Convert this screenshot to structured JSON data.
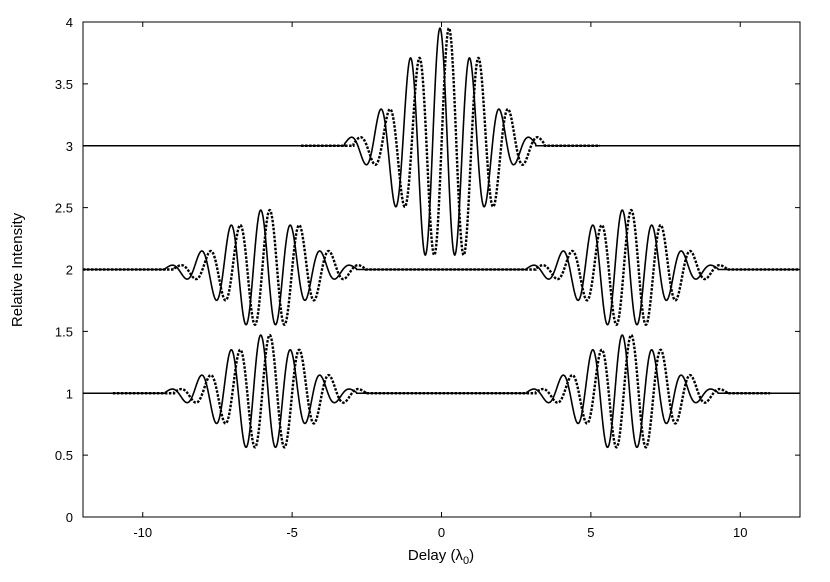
{
  "chart_data": {
    "type": "line",
    "title": "",
    "xlabel": "Delay (λ",
    "xlabel_sub": "0",
    "xlabel_close": ")",
    "ylabel": "Relative Intensity",
    "xlim": [
      -12,
      12
    ],
    "ylim": [
      0,
      4
    ],
    "xticks": [
      -10,
      -5,
      0,
      5,
      10
    ],
    "xtick_labels": [
      "-10",
      "-5",
      "0",
      "5",
      "10"
    ],
    "yticks": [
      0,
      0.5,
      1,
      1.5,
      2,
      2.5,
      3,
      3.5,
      4
    ],
    "ytick_labels": [
      "0",
      "0.5",
      "1",
      "1.5",
      "2",
      "2.5",
      "3",
      "3.5",
      "4"
    ],
    "grid": false,
    "legend": "none",
    "line_color": "#000000",
    "series": [
      {
        "style": "solid",
        "traces": [
          {
            "baseline": 3,
            "amplitude": 0.95,
            "packets": [
              {
                "center": -0.05,
                "amplitude": 1,
                "spread": 1.3,
                "support": 3.2
              }
            ],
            "period": 1.0,
            "phase": 0.0,
            "baseline_range": [
              -12,
              12
            ]
          },
          {
            "baseline": 2,
            "amplitude": 0.48,
            "packets": [
              {
                "center": -6.05,
                "amplitude": 1,
                "spread": 1.3,
                "support": 3.2
              },
              {
                "center": 6.05,
                "amplitude": 1,
                "spread": 1.3,
                "support": 3.2
              }
            ],
            "period": 1.0,
            "phase": 0.0,
            "baseline_range": [
              -12,
              12
            ]
          },
          {
            "baseline": 1,
            "amplitude": 0.47,
            "packets": [
              {
                "center": -6.05,
                "amplitude": 1,
                "spread": 1.3,
                "support": 3.2
              },
              {
                "center": 6.05,
                "amplitude": 1,
                "spread": 1.3,
                "support": 3.2
              }
            ],
            "period": 1.0,
            "phase": 0.0,
            "baseline_range": [
              -12,
              12
            ]
          }
        ]
      },
      {
        "style": "dotted",
        "traces": [
          {
            "baseline": 3,
            "amplitude": 0.95,
            "packets": [
              {
                "center": 0.25,
                "amplitude": 1,
                "spread": 1.3,
                "support": 3.2
              }
            ],
            "period": 1.0,
            "phase": 0.0,
            "baseline_range": [
              -4.7,
              5.3
            ]
          },
          {
            "baseline": 2,
            "amplitude": 0.48,
            "packets": [
              {
                "center": -5.75,
                "amplitude": 1,
                "spread": 1.3,
                "support": 3.2
              },
              {
                "center": 6.35,
                "amplitude": 1,
                "spread": 1.3,
                "support": 3.2
              }
            ],
            "period": 1.0,
            "phase": 0.0,
            "baseline_range": [
              -12,
              12
            ]
          },
          {
            "baseline": 1,
            "amplitude": 0.47,
            "packets": [
              {
                "center": -5.75,
                "amplitude": 1,
                "spread": 1.3,
                "support": 3.2
              },
              {
                "center": 6.35,
                "amplitude": 1,
                "spread": 1.3,
                "support": 3.2
              }
            ],
            "period": 1.0,
            "phase": 0.0,
            "baseline_range": [
              -11.0,
              11.0
            ]
          }
        ]
      }
    ]
  }
}
